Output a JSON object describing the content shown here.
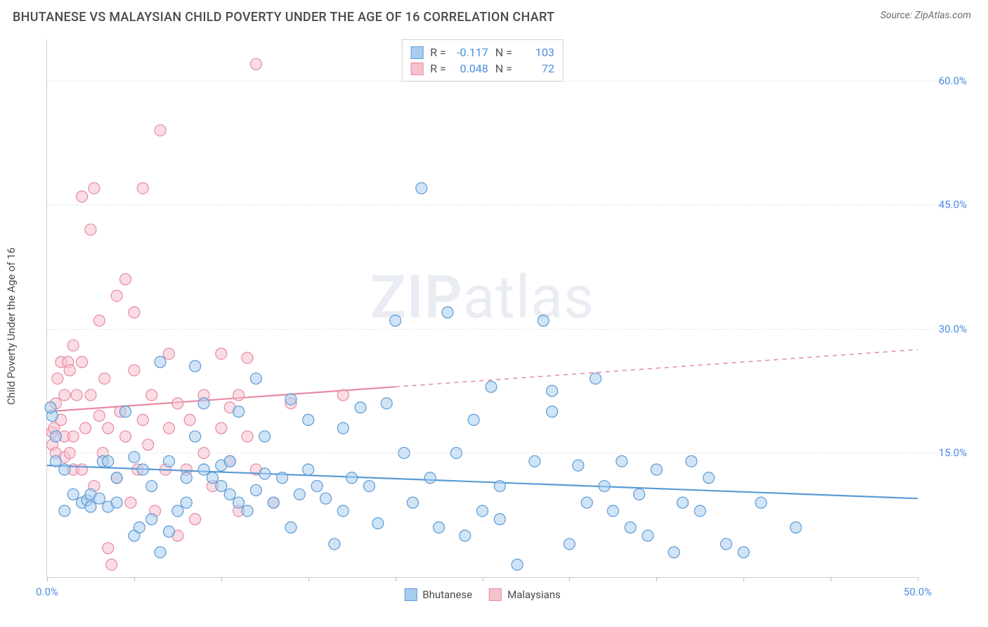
{
  "title": "BHUTANESE VS MALAYSIAN CHILD POVERTY UNDER THE AGE OF 16 CORRELATION CHART",
  "source_label": "Source: ZipAtlas.com",
  "watermark": {
    "bold": "ZIP",
    "rest": "atlas"
  },
  "y_axis_label": "Child Poverty Under the Age of 16",
  "chart": {
    "type": "scatter",
    "xlim": [
      0,
      50
    ],
    "ylim": [
      0,
      65
    ],
    "x_ticks": [
      0,
      5,
      10,
      15,
      20,
      25,
      30,
      35,
      40,
      45,
      50
    ],
    "x_tick_labels": {
      "0": "0.0%",
      "50": "50.0%"
    },
    "y_ticks": [
      15,
      30,
      45,
      60
    ],
    "y_tick_labels": {
      "15": "15.0%",
      "30": "30.0%",
      "45": "45.0%",
      "60": "60.0%"
    },
    "background_color": "#ffffff",
    "grid_color": "#e3e3e3",
    "axis_color": "#d0d0d0",
    "tick_label_color": "#4a8de0",
    "marker_radius": 8,
    "marker_opacity": 0.55,
    "trendline_width": 2.2,
    "series": [
      {
        "name": "Bhutanese",
        "color": "#5b9bd5",
        "fill": "#a9cdef",
        "stroke": "#5b9bd5",
        "r_value": "-0.117",
        "n_value": "103",
        "trendline": {
          "y_at_x0": 13.5,
          "y_at_x50": 9.5,
          "solid_to_x": 50
        },
        "points": [
          [
            0.3,
            19.5
          ],
          [
            0.5,
            14
          ],
          [
            0.5,
            17
          ],
          [
            0.2,
            20.5
          ],
          [
            1,
            13
          ],
          [
            1,
            8
          ],
          [
            1.5,
            10
          ],
          [
            2,
            9
          ],
          [
            2.3,
            9.3
          ],
          [
            2.5,
            8.5
          ],
          [
            2.5,
            10
          ],
          [
            3,
            9.5
          ],
          [
            3.2,
            14
          ],
          [
            3.5,
            8.5
          ],
          [
            3.5,
            14
          ],
          [
            4,
            9
          ],
          [
            4,
            12
          ],
          [
            4.5,
            20
          ],
          [
            5,
            14.5
          ],
          [
            5,
            5
          ],
          [
            5.3,
            6
          ],
          [
            5.5,
            13
          ],
          [
            6,
            11
          ],
          [
            6,
            7
          ],
          [
            6.5,
            26
          ],
          [
            6.5,
            3
          ],
          [
            7,
            14
          ],
          [
            7,
            5.5
          ],
          [
            7.5,
            8
          ],
          [
            8,
            12
          ],
          [
            8,
            9
          ],
          [
            8.5,
            17
          ],
          [
            8.5,
            25.5
          ],
          [
            9,
            13
          ],
          [
            9,
            21
          ],
          [
            9.5,
            12
          ],
          [
            10,
            13.5
          ],
          [
            10,
            11
          ],
          [
            10.5,
            10
          ],
          [
            10.5,
            14
          ],
          [
            11,
            9
          ],
          [
            11,
            20
          ],
          [
            11.5,
            8
          ],
          [
            12,
            10.5
          ],
          [
            12,
            24
          ],
          [
            12.5,
            12.5
          ],
          [
            12.5,
            17
          ],
          [
            13,
            9
          ],
          [
            13.5,
            12
          ],
          [
            14,
            21.5
          ],
          [
            14,
            6
          ],
          [
            14.5,
            10
          ],
          [
            15,
            13
          ],
          [
            15,
            19
          ],
          [
            15.5,
            11
          ],
          [
            16,
            9.5
          ],
          [
            16.5,
            4
          ],
          [
            17,
            18
          ],
          [
            17,
            8
          ],
          [
            17.5,
            12
          ],
          [
            18,
            20.5
          ],
          [
            18.5,
            11
          ],
          [
            19,
            6.5
          ],
          [
            19.5,
            21
          ],
          [
            20,
            31
          ],
          [
            20.5,
            15
          ],
          [
            21,
            9
          ],
          [
            21.5,
            47
          ],
          [
            22,
            12
          ],
          [
            22.5,
            6
          ],
          [
            23,
            32
          ],
          [
            23.5,
            15
          ],
          [
            24,
            5
          ],
          [
            24.5,
            19
          ],
          [
            25,
            8
          ],
          [
            25.5,
            23
          ],
          [
            26,
            11
          ],
          [
            27,
            1.5
          ],
          [
            28,
            14
          ],
          [
            28.5,
            31
          ],
          [
            29,
            22.5
          ],
          [
            29,
            20
          ],
          [
            30,
            4
          ],
          [
            30.5,
            13.5
          ],
          [
            31,
            9
          ],
          [
            31.5,
            24
          ],
          [
            32,
            11
          ],
          [
            32.5,
            8
          ],
          [
            33,
            14
          ],
          [
            33.5,
            6
          ],
          [
            34,
            10
          ],
          [
            34.5,
            5
          ],
          [
            35,
            13
          ],
          [
            36,
            3
          ],
          [
            36.5,
            9
          ],
          [
            37,
            14
          ],
          [
            37.5,
            8
          ],
          [
            38,
            12
          ],
          [
            39,
            4
          ],
          [
            40,
            3
          ],
          [
            41,
            9
          ],
          [
            43,
            6
          ],
          [
            26,
            7
          ]
        ]
      },
      {
        "name": "Malaysians",
        "color": "#e88aa0",
        "fill": "#f5c1cd",
        "stroke": "#e88aa0",
        "r_value": "0.048",
        "n_value": "72",
        "trendline": {
          "y_at_x0": 20,
          "y_at_x50": 27.5,
          "solid_to_x": 20
        },
        "points": [
          [
            0.3,
            16
          ],
          [
            0.3,
            17.5
          ],
          [
            0.4,
            18
          ],
          [
            0.5,
            15
          ],
          [
            0.5,
            21
          ],
          [
            0.6,
            24
          ],
          [
            0.8,
            19
          ],
          [
            0.8,
            26
          ],
          [
            1,
            14.5
          ],
          [
            1,
            17
          ],
          [
            1,
            22
          ],
          [
            1.2,
            26
          ],
          [
            1.3,
            15
          ],
          [
            1.3,
            25
          ],
          [
            1.5,
            17
          ],
          [
            1.5,
            28
          ],
          [
            1.5,
            13
          ],
          [
            1.7,
            22
          ],
          [
            2,
            26
          ],
          [
            2,
            46
          ],
          [
            2,
            13
          ],
          [
            2.2,
            18
          ],
          [
            2.5,
            42
          ],
          [
            2.5,
            22
          ],
          [
            2.7,
            11
          ],
          [
            2.7,
            47
          ],
          [
            3,
            31
          ],
          [
            3,
            19.5
          ],
          [
            3.2,
            15
          ],
          [
            3.3,
            24
          ],
          [
            3.5,
            3.5
          ],
          [
            3.5,
            18
          ],
          [
            3.7,
            1.5
          ],
          [
            4,
            34
          ],
          [
            4,
            12
          ],
          [
            4.2,
            20
          ],
          [
            4.5,
            36
          ],
          [
            4.5,
            17
          ],
          [
            4.8,
            9
          ],
          [
            5,
            25
          ],
          [
            5,
            32
          ],
          [
            5.2,
            13
          ],
          [
            5.5,
            19
          ],
          [
            5.5,
            47
          ],
          [
            5.8,
            16
          ],
          [
            6,
            22
          ],
          [
            6.2,
            8
          ],
          [
            6.5,
            54
          ],
          [
            6.8,
            13
          ],
          [
            7,
            18
          ],
          [
            7,
            27
          ],
          [
            7.5,
            5
          ],
          [
            7.5,
            21
          ],
          [
            8,
            13
          ],
          [
            8.2,
            19
          ],
          [
            8.5,
            7
          ],
          [
            9,
            15
          ],
          [
            9,
            22
          ],
          [
            9.5,
            11
          ],
          [
            10,
            18
          ],
          [
            10,
            27
          ],
          [
            10.5,
            20.5
          ],
          [
            10.5,
            14
          ],
          [
            11,
            8
          ],
          [
            11,
            22
          ],
          [
            11.5,
            26.5
          ],
          [
            11.5,
            17
          ],
          [
            12,
            13
          ],
          [
            12,
            62
          ],
          [
            13,
            9
          ],
          [
            14,
            21
          ],
          [
            17,
            22
          ]
        ]
      }
    ],
    "bottom_legend": [
      "Bhutanese",
      "Malaysians"
    ],
    "stats_labels": {
      "R": "R =",
      "N": "N ="
    }
  }
}
